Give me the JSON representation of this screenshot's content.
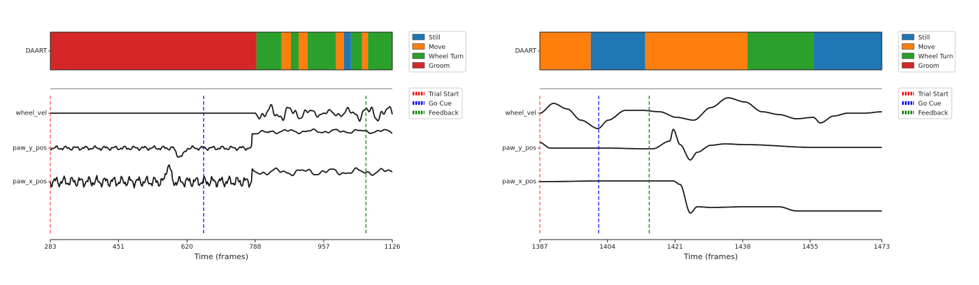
{
  "chart_data": [
    {
      "type": "line",
      "ethogram": {
        "row_label": "DAART",
        "segments": [
          {
            "start": 283,
            "end": 791,
            "label": "Groom"
          },
          {
            "start": 791,
            "end": 853,
            "label": "Wheel Turn"
          },
          {
            "start": 853,
            "end": 876,
            "label": "Move"
          },
          {
            "start": 876,
            "end": 895,
            "label": "Wheel Turn"
          },
          {
            "start": 895,
            "end": 917,
            "label": "Move"
          },
          {
            "start": 917,
            "end": 987,
            "label": "Wheel Turn"
          },
          {
            "start": 987,
            "end": 1007,
            "label": "Move"
          },
          {
            "start": 1007,
            "end": 1024,
            "label": "Still"
          },
          {
            "start": 1024,
            "end": 1051,
            "label": "Wheel Turn"
          },
          {
            "start": 1051,
            "end": 1066,
            "label": "Move"
          },
          {
            "start": 1066,
            "end": 1126,
            "label": "Wheel Turn"
          }
        ]
      },
      "traces": [
        "wheel_vel",
        "paw_y_pos",
        "paw_x_pos"
      ],
      "events": [
        {
          "name": "Trial Start",
          "x": 283
        },
        {
          "name": "Go Cue",
          "x": 661
        },
        {
          "name": "Feedback",
          "x": 1061
        }
      ],
      "xlim": [
        283,
        1126
      ],
      "xticks": [
        283,
        451,
        620,
        788,
        957,
        1126
      ],
      "xlabel": "Time (frames)"
    },
    {
      "type": "line",
      "ethogram": {
        "row_label": "DAART",
        "segments": [
          {
            "start": 1387,
            "end": 1399.8,
            "label": "Move"
          },
          {
            "start": 1399.8,
            "end": 1413.5,
            "label": "Still"
          },
          {
            "start": 1413.5,
            "end": 1439.2,
            "label": "Move"
          },
          {
            "start": 1439.2,
            "end": 1455.8,
            "label": "Wheel Turn"
          },
          {
            "start": 1455.8,
            "end": 1473,
            "label": "Still"
          }
        ]
      },
      "traces": [
        "wheel_vel",
        "paw_y_pos",
        "paw_x_pos"
      ],
      "events": [
        {
          "name": "Trial Start",
          "x": 1387
        },
        {
          "name": "Go Cue",
          "x": 1401.8
        },
        {
          "name": "Feedback",
          "x": 1414.5
        }
      ],
      "xlim": [
        1387,
        1473
      ],
      "xticks": [
        1387,
        1404,
        1421,
        1438,
        1455,
        1473
      ],
      "xlabel": "Time (frames)"
    }
  ],
  "legends": {
    "behaviors": [
      {
        "label": "Still",
        "color": "#1f77b4"
      },
      {
        "label": "Move",
        "color": "#ff7f0e"
      },
      {
        "label": "Wheel Turn",
        "color": "#2ca02c"
      },
      {
        "label": "Groom",
        "color": "#d62728"
      }
    ],
    "events": [
      {
        "label": "Trial Start",
        "color": "#ff0000"
      },
      {
        "label": "Go Cue",
        "color": "#0000ff"
      },
      {
        "label": "Feedback",
        "color": "#008000"
      }
    ]
  }
}
